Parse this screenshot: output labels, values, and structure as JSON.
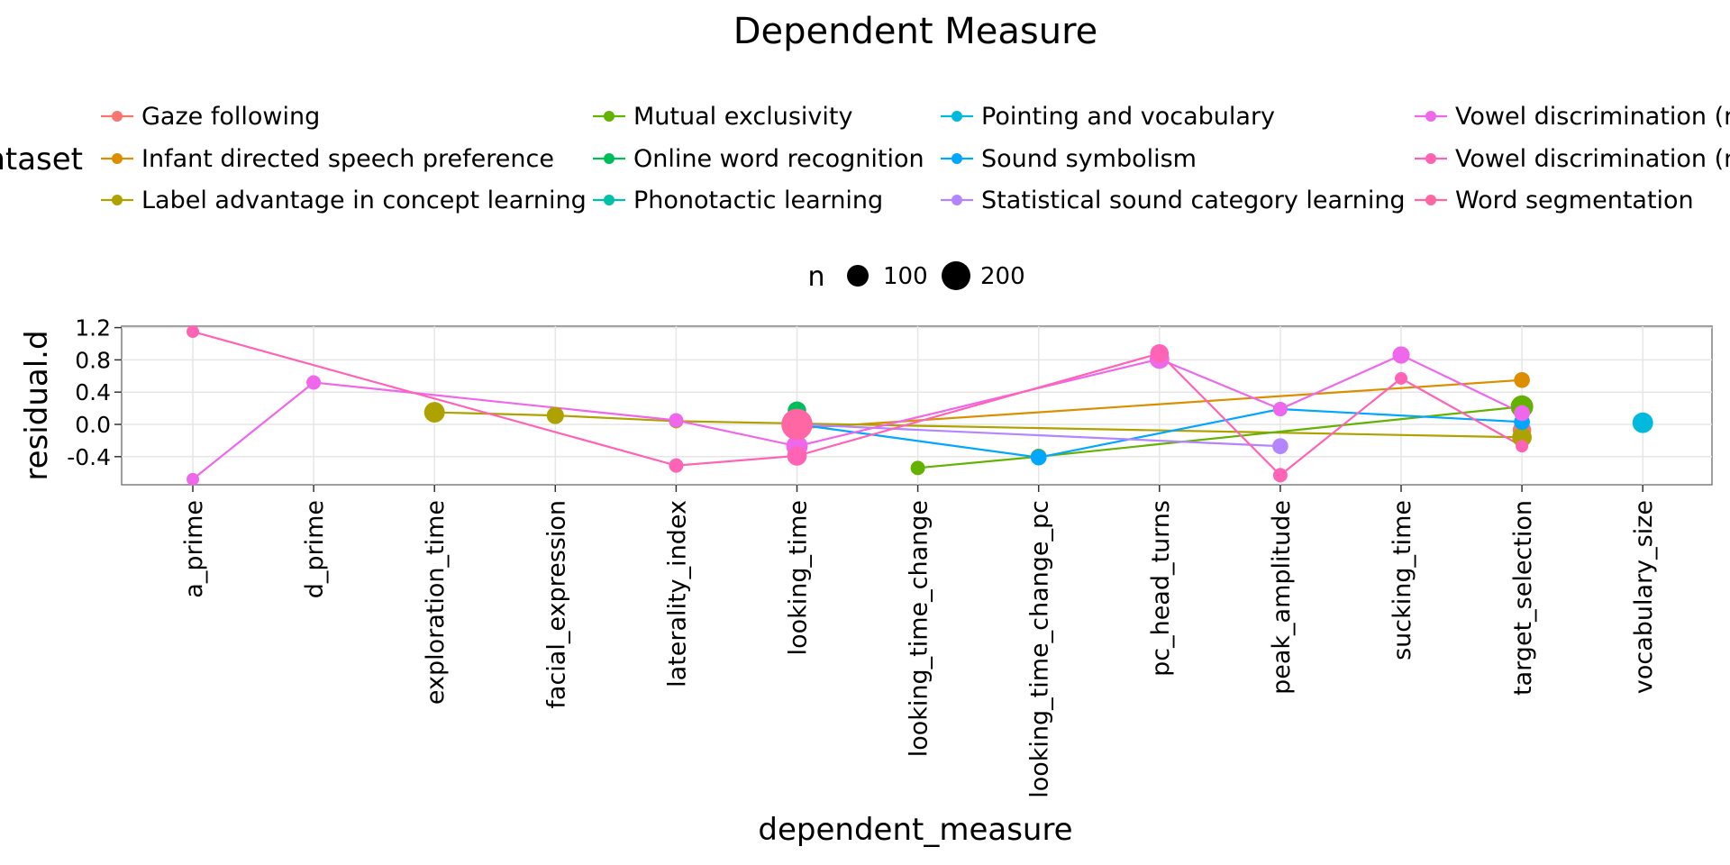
{
  "chart_data": {
    "type": "line",
    "title": "Dependent Measure",
    "xlabel": "dependent_measure",
    "ylabel": "residual.d",
    "ylim": [
      -0.75,
      1.25
    ],
    "yticks": [
      1.2,
      0.8,
      0.4,
      0.0,
      -0.4
    ],
    "ytick_labels": [
      "1.2",
      "0.8",
      "0.4",
      "0.0",
      "-0.4"
    ],
    "grid": true,
    "legend_placement": "top",
    "legend_title": "ntaset",
    "size_legend": {
      "title": "n",
      "entries": [
        {
          "label": "100",
          "n": 100
        },
        {
          "label": "200",
          "n": 200
        }
      ]
    },
    "categories": [
      "a_prime",
      "d_prime",
      "exploration_time",
      "facial_expression",
      "laterality_index",
      "looking_time",
      "looking_time_change",
      "looking_time_change_pc",
      "pc_head_turns",
      "peak_amplitude",
      "sucking_time",
      "target_selection",
      "vocabulary_size"
    ],
    "series": [
      {
        "name": "Gaze following",
        "color": "#F8766D",
        "points": [
          {
            "x": "target_selection",
            "y": -0.07,
            "n": 60
          }
        ]
      },
      {
        "name": "Infant directed speech preference",
        "color": "#DB8E00",
        "points": [
          {
            "x": "looking_time",
            "y": -0.05,
            "n": 60
          },
          {
            "x": "target_selection",
            "y": 0.55,
            "n": 40
          }
        ]
      },
      {
        "name": "Label advantage in concept learning",
        "color": "#AEA200",
        "points": [
          {
            "x": "exploration_time",
            "y": 0.15,
            "n": 80
          },
          {
            "x": "facial_expression",
            "y": 0.11,
            "n": 50
          },
          {
            "x": "laterality_index",
            "y": 0.04,
            "n": 30
          },
          {
            "x": "target_selection",
            "y": -0.16,
            "n": 70
          }
        ]
      },
      {
        "name": "Mutual exclusivity",
        "color": "#64B200",
        "points": [
          {
            "x": "looking_time_change",
            "y": -0.54,
            "n": 30
          },
          {
            "x": "looking_time_change_pc",
            "y": -0.4,
            "n": 40
          },
          {
            "x": "target_selection",
            "y": 0.22,
            "n": 100
          }
        ]
      },
      {
        "name": "Online word recognition",
        "color": "#00BD5C",
        "points": [
          {
            "x": "looking_time",
            "y": 0.17,
            "n": 60
          }
        ]
      },
      {
        "name": "Phonotactic learning",
        "color": "#00C1A7",
        "points": [
          {
            "x": "looking_time",
            "y": 0.02,
            "n": 70
          }
        ]
      },
      {
        "name": "Pointing and vocabulary",
        "color": "#00BADE",
        "points": [
          {
            "x": "vocabulary_size",
            "y": 0.02,
            "n": 80
          }
        ]
      },
      {
        "name": "Sound symbolism",
        "color": "#00A6FF",
        "points": [
          {
            "x": "looking_time",
            "y": 0.0,
            "n": 60
          },
          {
            "x": "looking_time_change_pc",
            "y": -0.41,
            "n": 40
          },
          {
            "x": "peak_amplitude",
            "y": 0.19,
            "n": 30
          },
          {
            "x": "target_selection",
            "y": 0.03,
            "n": 40
          }
        ]
      },
      {
        "name": "Statistical sound category learning",
        "color": "#B385FF",
        "points": [
          {
            "x": "looking_time",
            "y": 0.0,
            "n": 60
          },
          {
            "x": "peak_amplitude",
            "y": -0.27,
            "n": 40
          }
        ]
      },
      {
        "name": "Vowel discrimination (n",
        "color": "#EF67EB",
        "points": [
          {
            "x": "a_prime",
            "y": -0.68,
            "n": 20
          },
          {
            "x": "d_prime",
            "y": 0.52,
            "n": 30
          },
          {
            "x": "laterality_index",
            "y": 0.05,
            "n": 30
          },
          {
            "x": "looking_time",
            "y": -0.27,
            "n": 90
          },
          {
            "x": "pc_head_turns",
            "y": 0.81,
            "n": 70
          },
          {
            "x": "peak_amplitude",
            "y": 0.19,
            "n": 30
          },
          {
            "x": "sucking_time",
            "y": 0.86,
            "n": 50
          },
          {
            "x": "target_selection",
            "y": 0.14,
            "n": 40
          }
        ]
      },
      {
        "name": "Vowel discrimination (n",
        "color": "#FF63B6",
        "points": [
          {
            "x": "a_prime",
            "y": 1.15,
            "n": 20
          },
          {
            "x": "laterality_index",
            "y": -0.51,
            "n": 30
          },
          {
            "x": "looking_time",
            "y": -0.39,
            "n": 70
          },
          {
            "x": "pc_head_turns",
            "y": 0.88,
            "n": 60
          },
          {
            "x": "peak_amplitude",
            "y": -0.63,
            "n": 30
          },
          {
            "x": "sucking_time",
            "y": 0.57,
            "n": 20
          },
          {
            "x": "target_selection",
            "y": -0.27,
            "n": 20
          }
        ]
      },
      {
        "name": "Word segmentation",
        "color": "#FF67A4",
        "points": [
          {
            "x": "looking_time",
            "y": 0.0,
            "n": 220
          }
        ]
      }
    ]
  }
}
